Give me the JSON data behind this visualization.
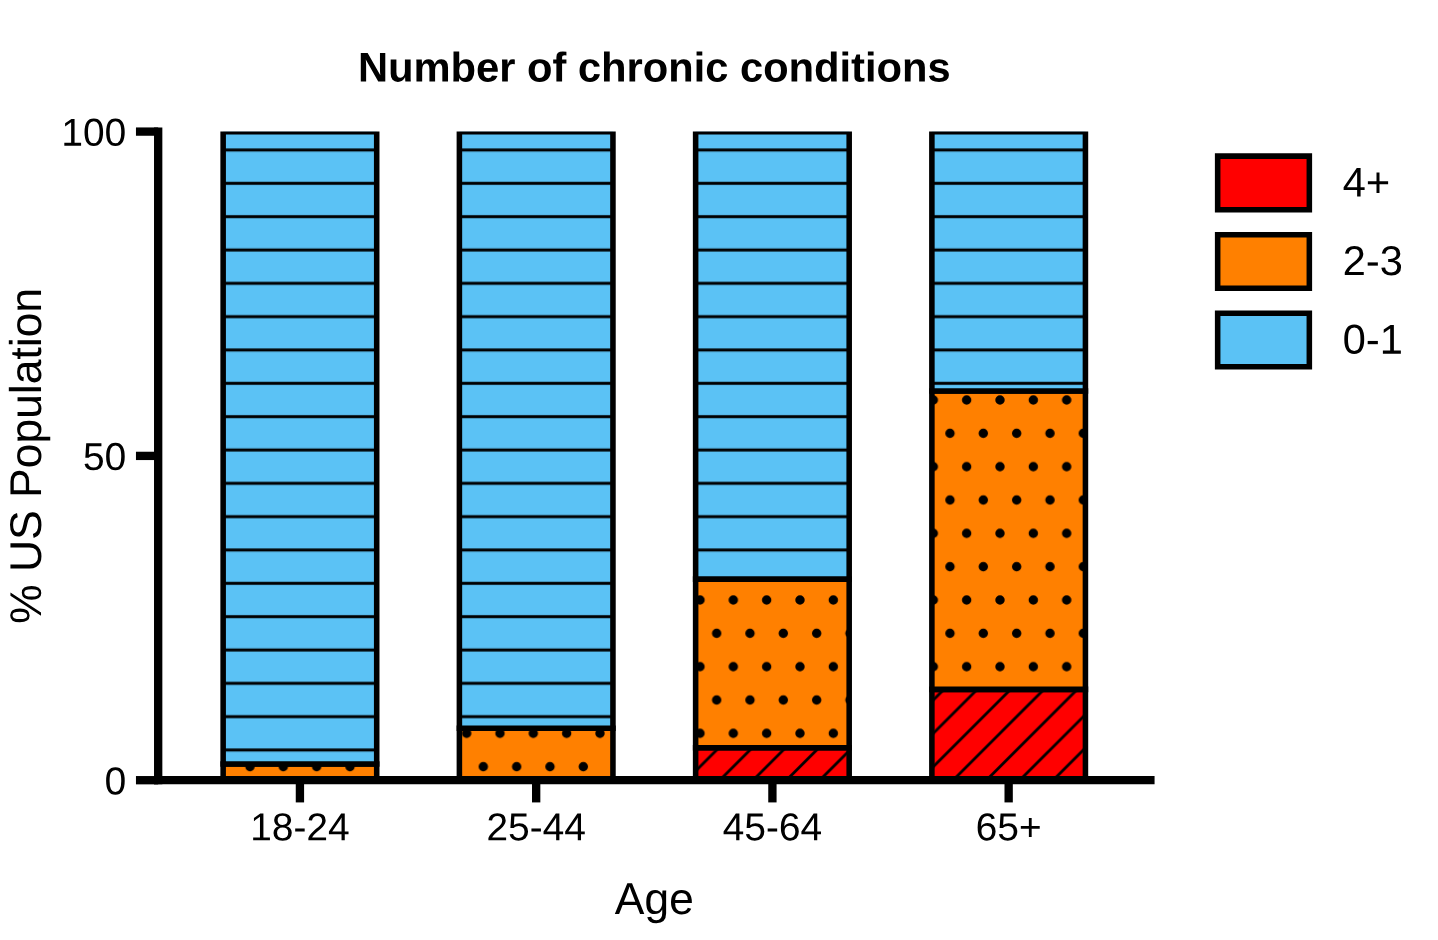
{
  "chart_data": {
    "type": "bar",
    "stacked": true,
    "title": "Number of chronic conditions",
    "xlabel": "Age",
    "ylabel": "% US Population",
    "categories": [
      "18-24",
      "25-44",
      "45-64",
      "65+"
    ],
    "series": [
      {
        "name": "4+",
        "color": "#ff0000",
        "values": [
          0,
          0,
          5,
          14
        ]
      },
      {
        "name": "2-3",
        "color": "#ff8000",
        "values": [
          2.5,
          8,
          26,
          46
        ]
      },
      {
        "name": "0-1",
        "color": "#5bc2f5",
        "values": [
          97.5,
          92,
          69,
          40
        ]
      }
    ],
    "ylim": [
      0,
      100
    ],
    "yticks": [
      0,
      50,
      100
    ],
    "grid": false,
    "legend": "top right"
  }
}
